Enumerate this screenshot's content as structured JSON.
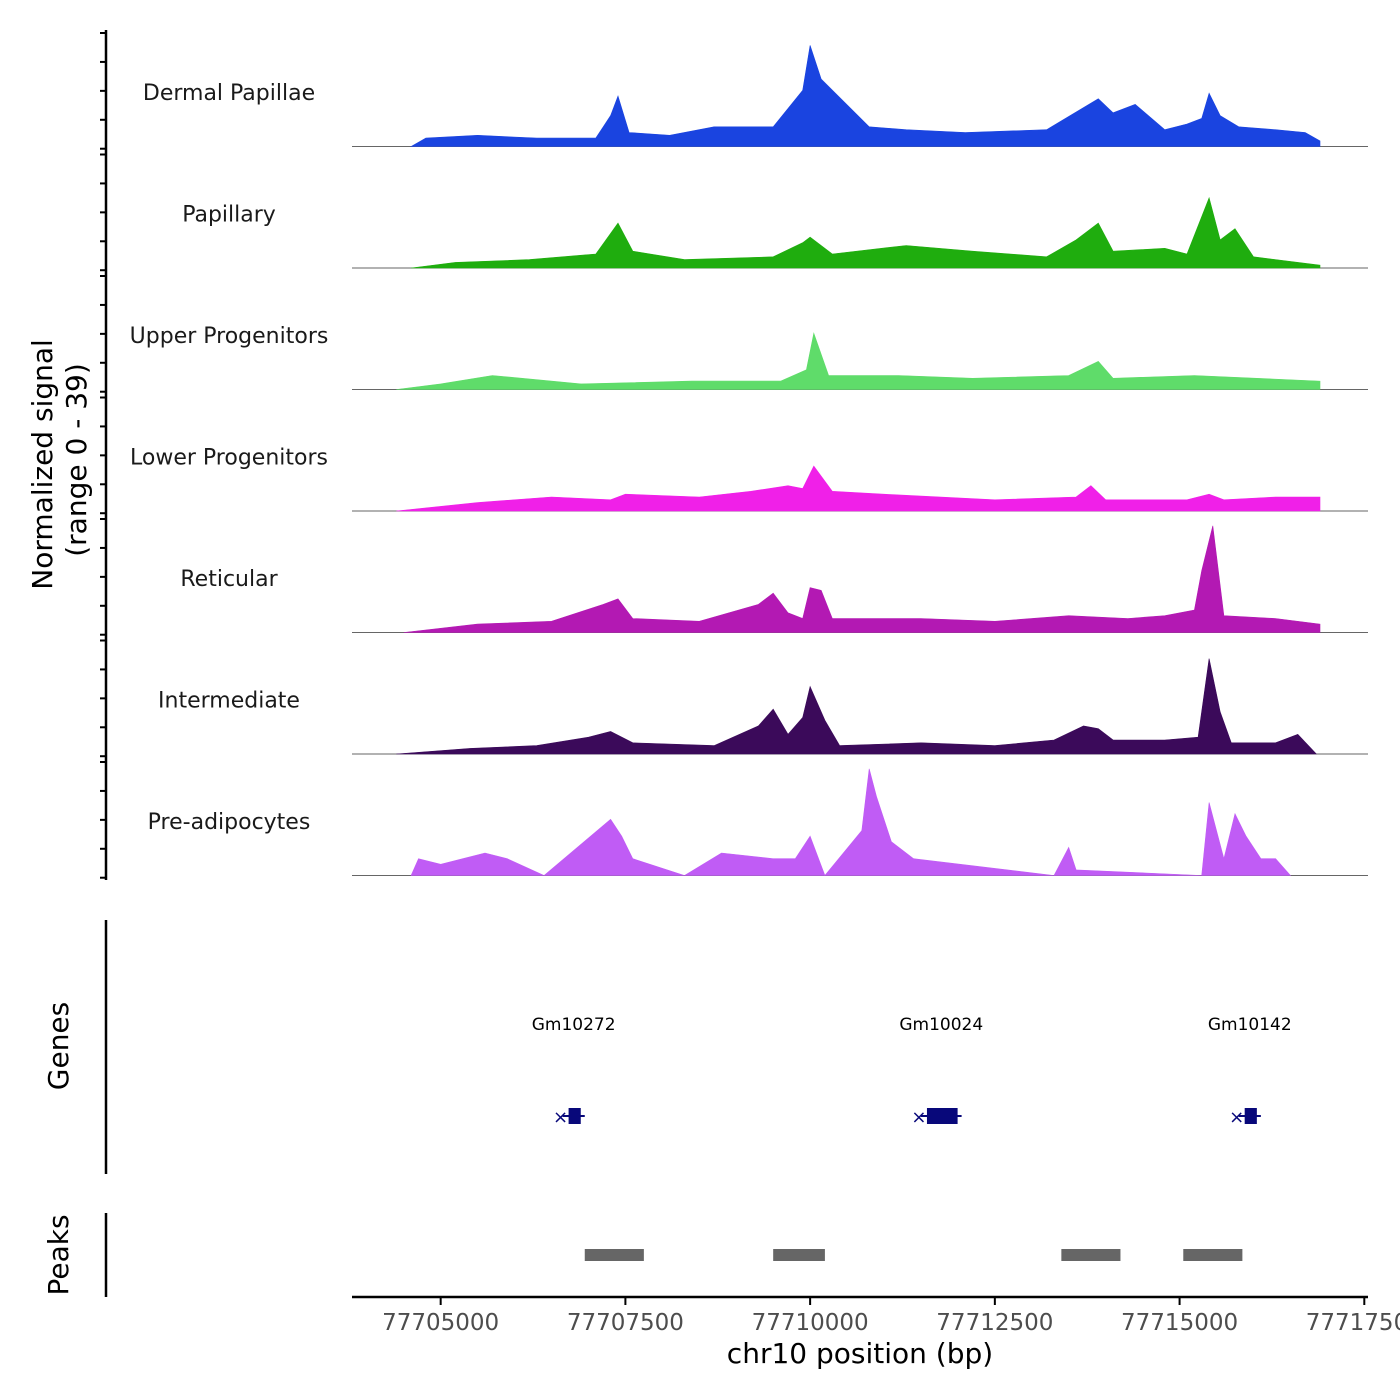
{
  "chart_data": {
    "type": "area",
    "chromosome": "chr10",
    "xlabel": "chr10 position (bp)",
    "ylabel": "Normalized signal\n(range 0 - 39)",
    "ylabel_lines": [
      "Normalized signal",
      "(range 0 - 39)"
    ],
    "ylim": [
      0,
      39
    ],
    "xlim": [
      77703800,
      77717550
    ],
    "x_ticks": [
      77705000,
      77707500,
      77710000,
      77712500,
      77715000,
      77717500
    ],
    "x_tick_labels": [
      "77705000",
      "77707500",
      "77710000",
      "77712500",
      "77715000",
      "77717500"
    ],
    "series": [
      {
        "name": "Dermal Papillae",
        "color": "#1a44e0",
        "x": [
          77704600,
          77704800,
          77705500,
          77706300,
          77707100,
          77707300,
          77707400,
          77707550,
          77708100,
          77708700,
          77709500,
          77709900,
          77710000,
          77710150,
          77710800,
          77711300,
          77712100,
          77713200,
          77713900,
          77714100,
          77714400,
          77714800,
          77715100,
          77715300,
          77715400,
          77715550,
          77715800,
          77716300,
          77716700,
          77716900
        ],
        "values": [
          0,
          3,
          4,
          3,
          3,
          11,
          18,
          5,
          4,
          7,
          7,
          20,
          36,
          24,
          7,
          6,
          5,
          6,
          17,
          12,
          15,
          6,
          8,
          10,
          19,
          11,
          7,
          6,
          5,
          2
        ]
      },
      {
        "name": "Papillary",
        "color": "#1fad0e",
        "x": [
          77704600,
          77705200,
          77706200,
          77707100,
          77707400,
          77707600,
          77708300,
          77709500,
          77709900,
          77710000,
          77710300,
          77711300,
          77712200,
          77713200,
          77713600,
          77713900,
          77714100,
          77714800,
          77715100,
          77715400,
          77715550,
          77715750,
          77716000,
          77716900
        ],
        "values": [
          0,
          2,
          3,
          5,
          16,
          6,
          3,
          4,
          9,
          11,
          5,
          8,
          6,
          4,
          10,
          16,
          6,
          7,
          5,
          25,
          10,
          14,
          4,
          1
        ]
      },
      {
        "name": "Upper Progenitors",
        "color": "#5fdc6a",
        "x": [
          77704400,
          77705000,
          77705700,
          77706900,
          77708400,
          77709600,
          77709950,
          77710050,
          77710250,
          77711200,
          77712200,
          77713500,
          77713900,
          77714100,
          77715200,
          77716900
        ],
        "values": [
          0,
          2,
          5,
          2,
          3,
          3,
          7,
          20,
          5,
          5,
          4,
          5,
          10,
          4,
          5,
          3
        ]
      },
      {
        "name": "Lower Progenitors",
        "color": "#f020e8",
        "x": [
          77704400,
          77705500,
          77706500,
          77707300,
          77707500,
          77708500,
          77709200,
          77709700,
          77709900,
          77710050,
          77710300,
          77711000,
          77712500,
          77713600,
          77713800,
          77714000,
          77715100,
          77715400,
          77715600,
          77716300,
          77716900
        ],
        "values": [
          0,
          3,
          5,
          4,
          6,
          5,
          7,
          9,
          8,
          16,
          7,
          6,
          4,
          5,
          9,
          4,
          4,
          6,
          4,
          5,
          5
        ]
      },
      {
        "name": "Reticular",
        "color": "#b319b3",
        "x": [
          77704500,
          77705500,
          77706500,
          77707200,
          77707400,
          77707600,
          77708500,
          77709300,
          77709500,
          77709700,
          77709900,
          77710000,
          77710150,
          77710300,
          77711500,
          77712500,
          77713500,
          77714300,
          77714800,
          77715200,
          77715300,
          77715450,
          77715600,
          77716300,
          77716900
        ],
        "values": [
          0,
          3,
          4,
          10,
          12,
          5,
          4,
          10,
          14,
          7,
          5,
          16,
          15,
          5,
          5,
          4,
          6,
          5,
          6,
          8,
          22,
          38,
          6,
          5,
          3
        ]
      },
      {
        "name": "Intermediate",
        "color": "#3b0a5a",
        "x": [
          77704400,
          77705400,
          77706300,
          77707000,
          77707300,
          77707600,
          77708700,
          77709300,
          77709500,
          77709700,
          77709900,
          77710000,
          77710200,
          77710400,
          77711500,
          77712500,
          77713300,
          77713700,
          77713900,
          77714100,
          77714800,
          77715250,
          77715400,
          77715550,
          77715700,
          77716300,
          77716600,
          77716850
        ],
        "values": [
          0,
          2,
          3,
          6,
          8,
          4,
          3,
          10,
          16,
          7,
          13,
          24,
          12,
          3,
          4,
          3,
          5,
          10,
          9,
          5,
          5,
          6,
          34,
          15,
          4,
          4,
          7,
          0
        ]
      },
      {
        "name": "Pre-adipocytes",
        "color": "#c05cf5",
        "x": [
          77704600,
          77704700,
          77705000,
          77705300,
          77705600,
          77705900,
          77706400,
          77707300,
          77707450,
          77707600,
          77708300,
          77708800,
          77709500,
          77709800,
          77710000,
          77710200,
          77710700,
          77710800,
          77710900,
          77711000,
          77711100,
          77711400,
          77713300,
          77713500,
          77713600,
          77715300,
          77715400,
          77715600,
          77715750,
          77715900,
          77716100,
          77716300,
          77716500
        ],
        "values": [
          0,
          6,
          4,
          6,
          8,
          6,
          0,
          20,
          14,
          6,
          0,
          8,
          6,
          6,
          14,
          0,
          16,
          38,
          28,
          20,
          12,
          6,
          0,
          10,
          2,
          0,
          26,
          6,
          22,
          14,
          6,
          6,
          0
        ]
      }
    ],
    "genes": [
      {
        "name": "Gm10272",
        "start": 77706650,
        "end": 77706950
      },
      {
        "name": "Gm10024",
        "start": 77711500,
        "end": 77712050
      },
      {
        "name": "Gm10142",
        "start": 77715800,
        "end": 77716100
      }
    ],
    "peaks": [
      {
        "start": 77706950,
        "end": 77707750
      },
      {
        "start": 77709500,
        "end": 77710200
      },
      {
        "start": 77713400,
        "end": 77714200
      },
      {
        "start": 77715050,
        "end": 77715850
      }
    ],
    "panel_labels": {
      "genes": "Genes",
      "peaks": "Peaks"
    }
  }
}
